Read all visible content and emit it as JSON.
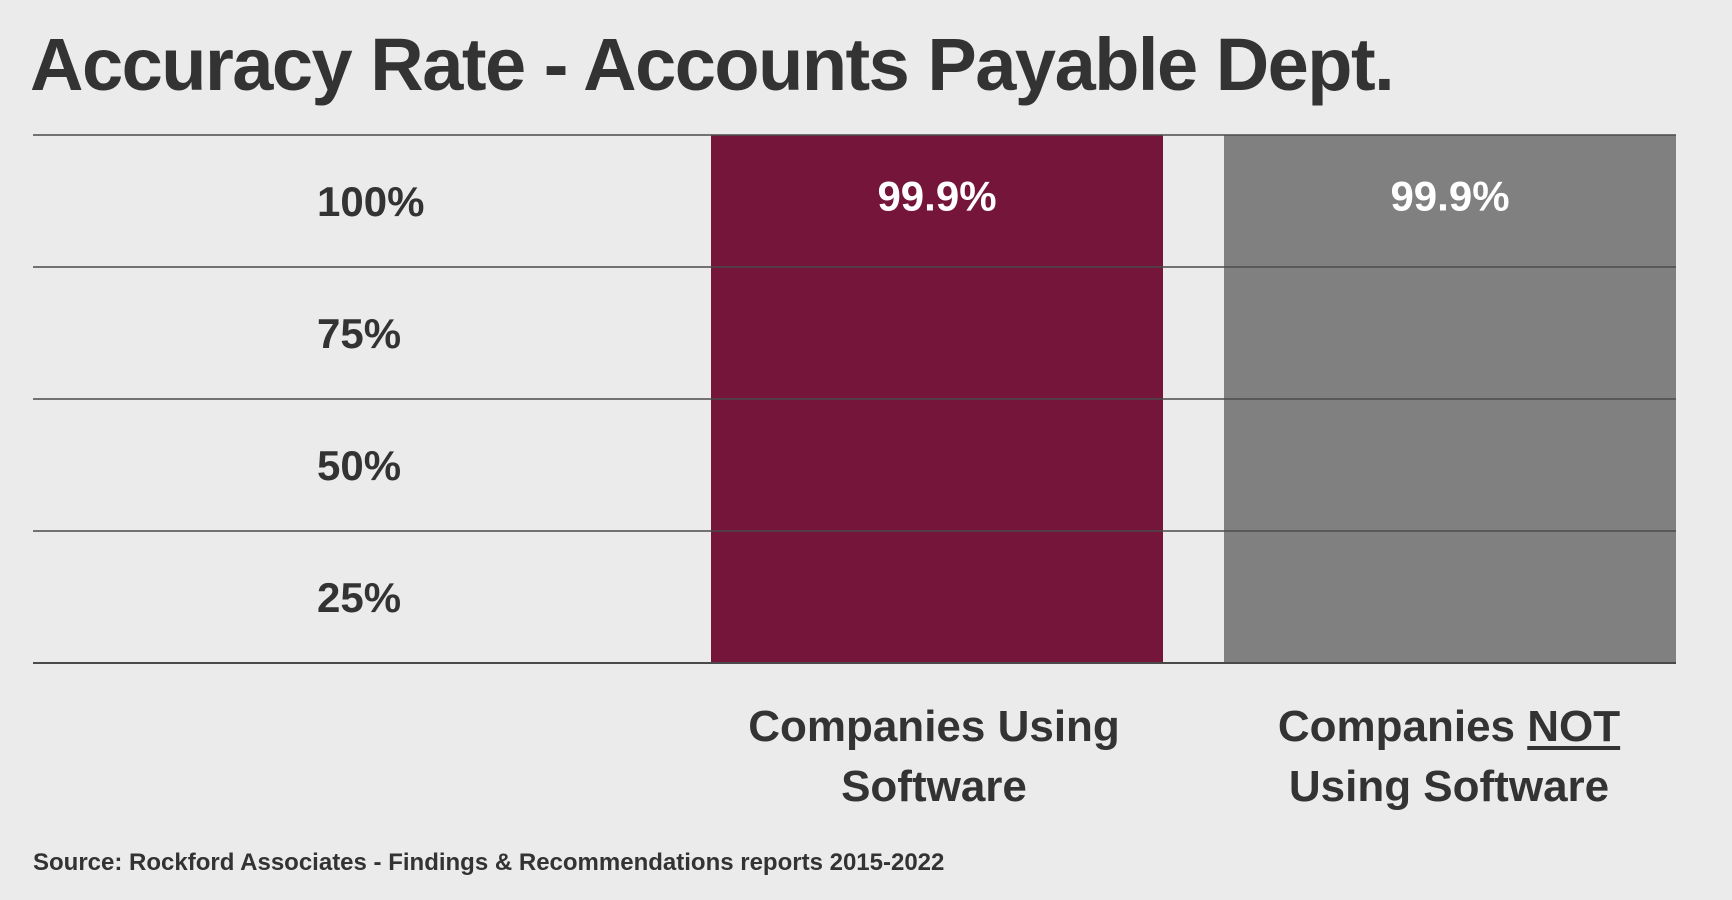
{
  "chart_data": {
    "type": "bar",
    "title": "Accuracy Rate - Accounts Payable Dept.",
    "categories": [
      "Companies Using Software",
      "Companies NOT Using Software"
    ],
    "values": [
      99.9,
      99.9
    ],
    "data_labels": [
      "99.9%",
      "99.9%"
    ],
    "ylim": [
      0,
      100
    ],
    "y_ticks": [
      {
        "value": 25,
        "label": "25%"
      },
      {
        "value": 50,
        "label": "50%"
      },
      {
        "value": 75,
        "label": "75%"
      },
      {
        "value": 100,
        "label": "100%"
      }
    ],
    "grid": true,
    "legend": "none",
    "colors": [
      "#751539",
      "#808080"
    ],
    "source": "Source: Rockford Associates - Findings & Recommendations reports 2015-2022"
  },
  "category_text": [
    {
      "line1_a": "Companies Using",
      "line1_u": "",
      "line2": "Software"
    },
    {
      "line1_a": "Companies ",
      "line1_u": "NOT",
      "line2": "Using Software"
    }
  ]
}
